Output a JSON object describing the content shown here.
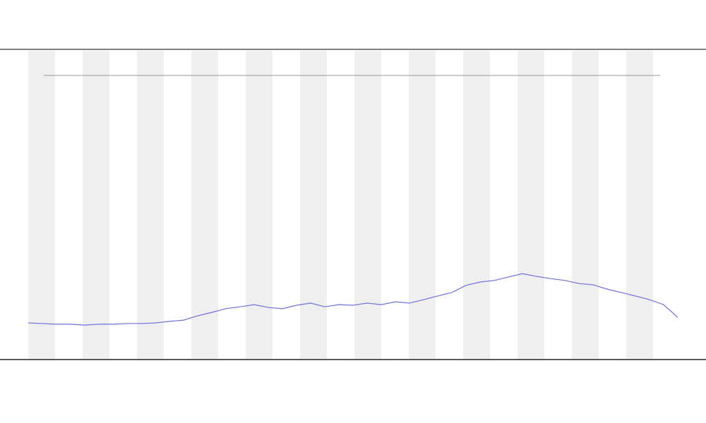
{
  "chart_data": {
    "type": "line",
    "x": [
      0,
      1,
      2,
      3,
      4,
      5,
      6,
      7,
      8,
      9,
      10,
      11,
      12,
      13,
      14,
      15,
      16,
      17,
      18,
      19,
      20,
      21,
      22,
      23,
      24,
      25,
      26,
      27,
      28,
      29,
      30,
      31,
      32,
      33,
      34,
      35,
      36,
      37,
      38,
      39,
      40,
      41,
      42,
      43,
      44,
      45,
      46
    ],
    "xlim": [
      0,
      46
    ],
    "ylim": [
      0,
      100
    ],
    "series": [
      {
        "color": "#6f6fe0",
        "values": [
          11.8,
          11.6,
          11.4,
          11.4,
          11.1,
          11.4,
          11.4,
          11.6,
          11.6,
          11.8,
          12.3,
          12.7,
          14.1,
          15.2,
          16.4,
          17,
          17.7,
          16.8,
          16.4,
          17.5,
          18.2,
          17,
          17.7,
          17.5,
          18.2,
          17.7,
          18.6,
          18.2,
          19.3,
          20.5,
          21.6,
          23.9,
          25,
          25.5,
          26.6,
          27.7,
          26.8,
          26.1,
          25.5,
          24.5,
          24.1,
          22.7,
          21.6,
          20.5,
          19.3,
          17.7,
          13.6
        ]
      }
    ]
  }
}
